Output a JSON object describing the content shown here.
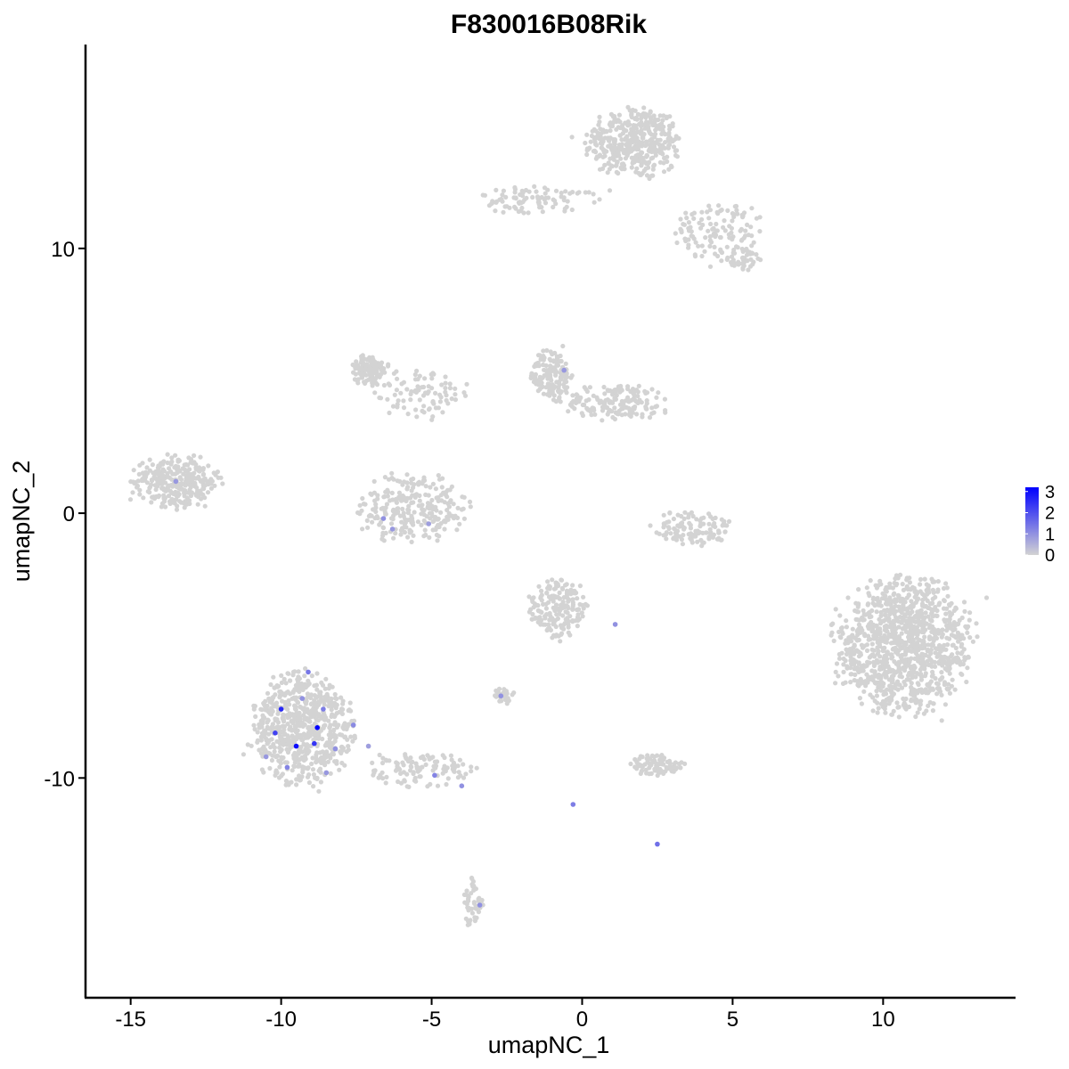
{
  "chart_data": {
    "type": "scatter",
    "title": "F830016B08Rik",
    "xlabel": "umapNC_1",
    "ylabel": "umapNC_2",
    "xlim": [
      -16.5,
      14.4
    ],
    "ylim": [
      -18.3,
      17.7
    ],
    "x_ticks": [
      -15,
      -10,
      -5,
      0,
      5,
      10
    ],
    "x_tick_labels": [
      "-15",
      "-10",
      "-5",
      "0",
      "5",
      "10"
    ],
    "y_ticks": [
      -10,
      0,
      10
    ],
    "y_tick_labels": [
      "-10",
      "0",
      "10"
    ],
    "grid": false,
    "legend": {
      "position": "right",
      "type": "colorbar",
      "min": 0,
      "max": 3.2,
      "ticks": [
        0,
        1,
        2,
        3
      ],
      "tick_labels": [
        "0",
        "1",
        "2",
        "3"
      ],
      "low_color": "#d3d3d3",
      "high_color": "#0000ff"
    },
    "clusters": [
      {
        "name": "c_top_right",
        "cx": 1.7,
        "cy": 14.0,
        "rx": 1.4,
        "ry": 1.2,
        "n": 420
      },
      {
        "name": "c_top_arm_left",
        "cx": -1.5,
        "cy": 11.8,
        "rx": 1.8,
        "ry": 0.45,
        "n": 90
      },
      {
        "name": "c_top_arm_right",
        "cx": 4.5,
        "cy": 10.7,
        "rx": 1.3,
        "ry": 1.0,
        "n": 120
      },
      {
        "name": "c_top_tail",
        "cx": 5.4,
        "cy": 9.6,
        "rx": 0.5,
        "ry": 0.4,
        "n": 40
      },
      {
        "name": "c_upper_left",
        "cx": -7.1,
        "cy": 5.4,
        "rx": 0.6,
        "ry": 0.5,
        "n": 110
      },
      {
        "name": "c_upper_left_arm",
        "cx": -5.5,
        "cy": 4.5,
        "rx": 1.6,
        "ry": 0.9,
        "n": 90
      },
      {
        "name": "c_upper_mid",
        "cx": -1.0,
        "cy": 5.2,
        "rx": 0.6,
        "ry": 0.9,
        "n": 150
      },
      {
        "name": "c_upper_mid_arm",
        "cx": 1.2,
        "cy": 4.2,
        "rx": 1.6,
        "ry": 0.6,
        "n": 160
      },
      {
        "name": "c_left_blob",
        "cx": -13.5,
        "cy": 1.2,
        "rx": 1.3,
        "ry": 0.9,
        "n": 310
      },
      {
        "name": "c_cup",
        "cx": -5.6,
        "cy": 0.2,
        "rx": 1.6,
        "ry": 1.2,
        "n": 260
      },
      {
        "name": "c_small_mid",
        "cx": 3.6,
        "cy": -0.6,
        "rx": 1.2,
        "ry": 0.6,
        "n": 120
      },
      {
        "name": "c_right_big",
        "cx": 10.7,
        "cy": -5.0,
        "rx": 2.1,
        "ry": 2.3,
        "n": 1100
      },
      {
        "name": "c_mid_lower",
        "cx": -0.8,
        "cy": -3.6,
        "rx": 0.9,
        "ry": 1.0,
        "n": 180
      },
      {
        "name": "c_lower_left",
        "cx": -9.3,
        "cy": -8.1,
        "rx": 1.5,
        "ry": 1.9,
        "n": 700
      },
      {
        "name": "c_lower_left_arm",
        "cx": -5.5,
        "cy": -9.7,
        "rx": 1.7,
        "ry": 0.6,
        "n": 110
      },
      {
        "name": "c_small_lower_mid",
        "cx": 2.5,
        "cy": -9.5,
        "rx": 0.8,
        "ry": 0.35,
        "n": 90
      },
      {
        "name": "c_small_left_mid",
        "cx": -2.6,
        "cy": -6.9,
        "rx": 0.35,
        "ry": 0.3,
        "n": 30
      },
      {
        "name": "c_bottom_tail",
        "cx": -3.6,
        "cy": -14.8,
        "rx": 0.3,
        "ry": 0.9,
        "n": 50
      }
    ],
    "highlighted_points": [
      {
        "x": -10.0,
        "y": -7.4,
        "value": 2.6
      },
      {
        "x": -9.5,
        "y": -8.8,
        "value": 3.0
      },
      {
        "x": -8.9,
        "y": -8.7,
        "value": 2.4
      },
      {
        "x": -8.8,
        "y": -8.1,
        "value": 3.2
      },
      {
        "x": -10.2,
        "y": -8.3,
        "value": 2.2
      },
      {
        "x": -9.1,
        "y": -6.0,
        "value": 1.4
      },
      {
        "x": -9.8,
        "y": -9.6,
        "value": 1.2
      },
      {
        "x": -8.2,
        "y": -8.9,
        "value": 1.0
      },
      {
        "x": -8.5,
        "y": -9.8,
        "value": 0.9
      },
      {
        "x": -7.6,
        "y": -8.0,
        "value": 1.1
      },
      {
        "x": -7.1,
        "y": -8.8,
        "value": 0.8
      },
      {
        "x": -9.3,
        "y": -7.0,
        "value": 1.0
      },
      {
        "x": -8.6,
        "y": -7.4,
        "value": 1.3
      },
      {
        "x": -10.5,
        "y": -9.2,
        "value": 0.9
      },
      {
        "x": -6.6,
        "y": -0.2,
        "value": 1.0
      },
      {
        "x": -6.3,
        "y": -0.6,
        "value": 0.9
      },
      {
        "x": -5.1,
        "y": -0.4,
        "value": 0.8
      },
      {
        "x": -13.5,
        "y": 1.2,
        "value": 0.9
      },
      {
        "x": -4.9,
        "y": -9.9,
        "value": 1.2
      },
      {
        "x": -4.0,
        "y": -10.3,
        "value": 1.0
      },
      {
        "x": -0.3,
        "y": -11.0,
        "value": 1.3
      },
      {
        "x": 2.5,
        "y": -12.5,
        "value": 1.5
      },
      {
        "x": -3.4,
        "y": -14.8,
        "value": 1.0
      },
      {
        "x": -0.6,
        "y": 5.4,
        "value": 0.9
      },
      {
        "x": 1.1,
        "y": -4.2,
        "value": 1.0
      },
      {
        "x": -2.7,
        "y": -6.9,
        "value": 1.0
      }
    ]
  }
}
